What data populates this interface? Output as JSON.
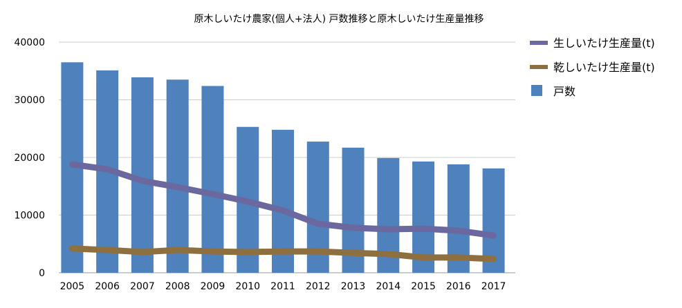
{
  "chart_data": {
    "type": "bar+line",
    "title": "原木しいたけ農家(個人+法人) 戸数推移と原木しいたけ生産量推移",
    "xlabel": "",
    "ylabel": "",
    "ylim": [
      0,
      40000
    ],
    "yticks": [
      0,
      10000,
      20000,
      30000,
      40000
    ],
    "grid": true,
    "legend_position": "right",
    "categories": [
      "2005",
      "2006",
      "2007",
      "2008",
      "2009",
      "2010",
      "2011",
      "2012",
      "2013",
      "2014",
      "2015",
      "2016",
      "2017"
    ],
    "series": [
      {
        "name": "生しいたけ生産量(t)",
        "type": "line",
        "color": "#6b689f",
        "values": [
          18800,
          17950,
          15950,
          14850,
          13650,
          12350,
          10800,
          8500,
          7800,
          7550,
          7650,
          7300,
          6450
        ]
      },
      {
        "name": "乾しいたけ生産量(t)",
        "type": "line",
        "color": "#8e7040",
        "values": [
          4200,
          3950,
          3600,
          3950,
          3700,
          3600,
          3700,
          3700,
          3450,
          3250,
          2650,
          2650,
          2400
        ]
      },
      {
        "name": "戸数",
        "type": "bar",
        "color": "#4f81bd",
        "values": [
          36500,
          35100,
          33900,
          33500,
          32400,
          25300,
          24800,
          22750,
          21700,
          19900,
          19300,
          18800,
          18100
        ]
      }
    ]
  }
}
